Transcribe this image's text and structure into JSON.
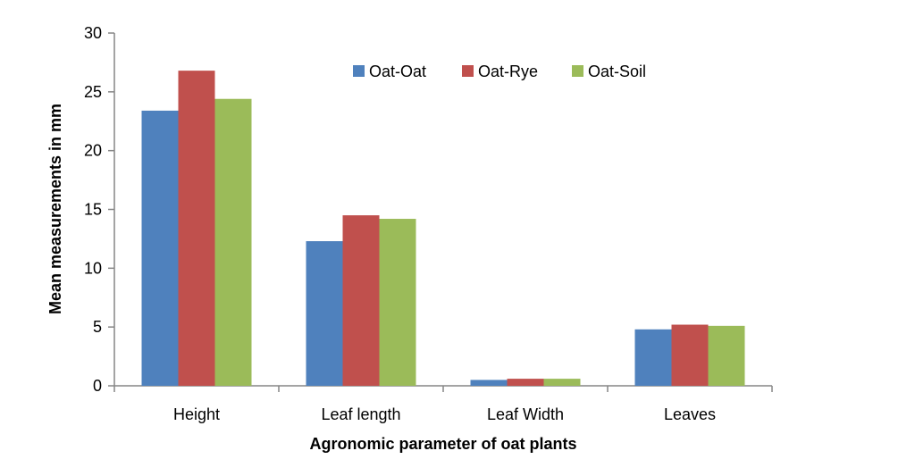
{
  "chart_data": {
    "type": "bar",
    "title": "",
    "xlabel": "Agronomic parameter of oat plants",
    "ylabel": "Mean measurements in mm",
    "categories": [
      "Height",
      "Leaf length",
      "Leaf Width",
      "Leaves"
    ],
    "series": [
      {
        "name": "Oat-Oat",
        "color": "#4F81BD",
        "values": [
          23.4,
          12.3,
          0.5,
          4.8
        ]
      },
      {
        "name": "Oat-Rye",
        "color": "#C0504D",
        "values": [
          26.8,
          14.5,
          0.6,
          5.2
        ]
      },
      {
        "name": "Oat-Soil",
        "color": "#9BBB59",
        "values": [
          24.4,
          14.2,
          0.6,
          5.1
        ]
      }
    ],
    "ylim": [
      0,
      30
    ],
    "yticks": [
      "0",
      "5",
      "10",
      "15",
      "20",
      "25",
      "30"
    ],
    "grid": false,
    "legend_position": "top-right"
  }
}
